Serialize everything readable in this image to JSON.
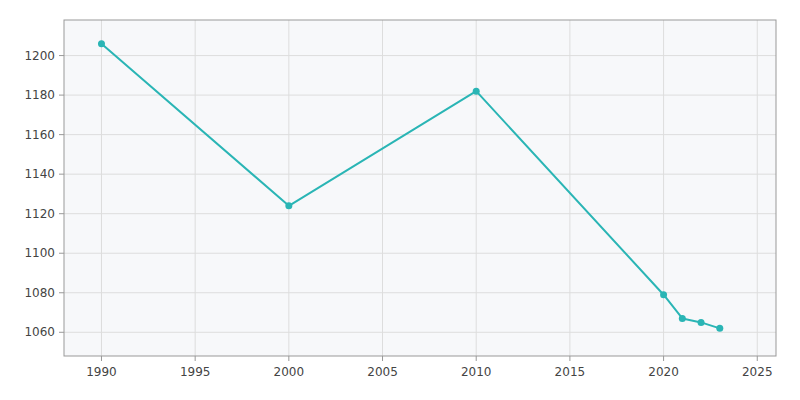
{
  "chart_data": {
    "type": "line",
    "x": [
      1990,
      2000,
      2010,
      2020,
      2021,
      2022,
      2023
    ],
    "values": [
      1206,
      1124,
      1182,
      1079,
      1067,
      1065,
      1062
    ],
    "color": "#2ab5b5",
    "marker": "circle",
    "xlim": [
      1988,
      2026
    ],
    "ylim": [
      1048,
      1218
    ],
    "xticks": [
      1990,
      1995,
      2000,
      2005,
      2010,
      2015,
      2020,
      2025
    ],
    "yticks": [
      1060,
      1080,
      1100,
      1120,
      1140,
      1160,
      1180,
      1200
    ],
    "grid": true
  }
}
